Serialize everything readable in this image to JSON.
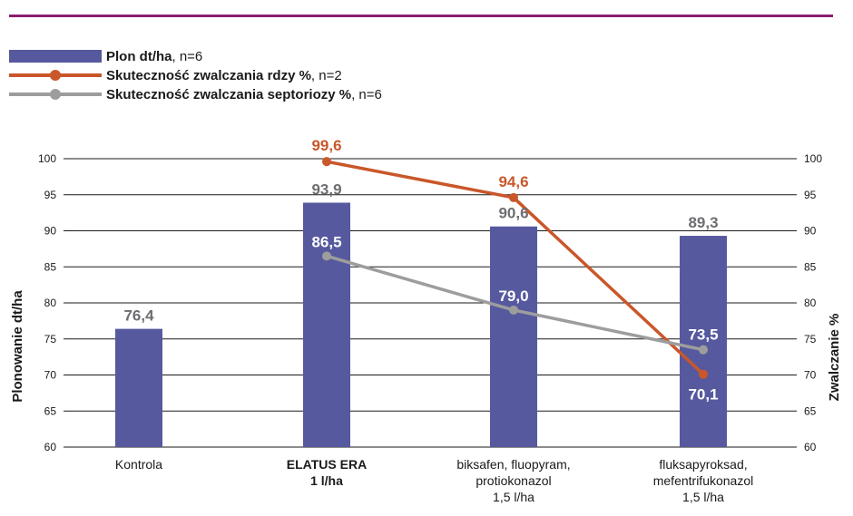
{
  "chart_data": {
    "type": "bar+line",
    "categories": [
      [
        "Kontrola"
      ],
      [
        "ELATUS ERA",
        "1 l/ha"
      ],
      [
        "biksafen, fluopyram,",
        "protiokonazol",
        "1,5 l/ha"
      ],
      [
        "fluksapyroksad,",
        "mefentrifukonazol",
        "1,5 l/ha"
      ]
    ],
    "category_bold": [
      false,
      true,
      false,
      false
    ],
    "series": [
      {
        "name": "Plon dt/ha",
        "name_suffix": ", n=6",
        "kind": "bar",
        "axis": "left",
        "color": "#56599e",
        "values": [
          76.4,
          93.9,
          90.6,
          89.3
        ],
        "labels": [
          "76,4",
          "93,9",
          "90,6",
          "89,3"
        ],
        "label_color": "#6d6e71"
      },
      {
        "name": "Skuteczność zwalczania rdzy %",
        "name_suffix": ", n=2",
        "kind": "line",
        "axis": "right",
        "color": "#c9572a",
        "points": [
          {
            "category": 1,
            "value": 99.6,
            "label": "99,6"
          },
          {
            "category": 2,
            "value": 94.6,
            "label": "94,6"
          },
          {
            "category": 3,
            "value": 70.1,
            "label": "70,1"
          }
        ]
      },
      {
        "name": "Skuteczność zwalczania septoriozy %",
        "name_suffix": ", n=6",
        "kind": "line",
        "axis": "right",
        "color": "#9d9d9d",
        "points": [
          {
            "category": 1,
            "value": 86.5,
            "label": "86,5"
          },
          {
            "category": 2,
            "value": 79.0,
            "label": "79,0"
          },
          {
            "category": 3,
            "value": 73.5,
            "label": "73,5"
          }
        ]
      }
    ],
    "ylabel_left": "Plonowanie dt/ha",
    "ylabel_right": "Zwalczanie %",
    "ylim": [
      60,
      100
    ],
    "yticks": [
      60,
      65,
      70,
      75,
      80,
      85,
      90,
      95,
      100
    ],
    "grid": true,
    "legend_position": "top-left"
  },
  "colors": {
    "accent_rule": "#8a1f6e",
    "axis_text": "#1a1a1a"
  }
}
